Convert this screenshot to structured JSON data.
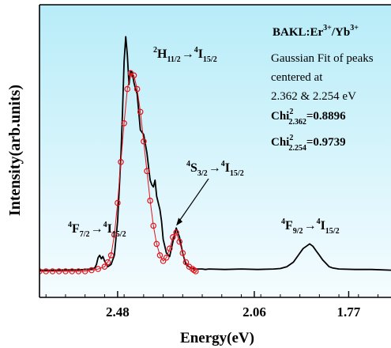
{
  "chart_data": {
    "type": "line",
    "xlabel": "Energy(eV)",
    "ylabel": "Intensity(arb.units)",
    "x_reversed": true,
    "xlim": [
      2.72,
      1.64
    ],
    "ylim": [
      0,
      1.08
    ],
    "x_ticks": [
      {
        "value": 2.48,
        "label": "2.48"
      },
      {
        "value": 2.06,
        "label": "2.06"
      },
      {
        "value": 1.77,
        "label": "1.77"
      }
    ],
    "y_ticks_labeled": false,
    "grid": false,
    "background_gradient": [
      "#b7ecf8",
      "#f5fcff"
    ],
    "series": [
      {
        "style": "solid-black-line",
        "color": "#000000",
        "x": [
          2.72,
          2.68,
          2.64,
          2.6,
          2.58,
          2.56,
          2.55,
          2.545,
          2.54,
          2.535,
          2.53,
          2.525,
          2.52,
          2.51,
          2.5,
          2.49,
          2.48,
          2.47,
          2.465,
          2.46,
          2.455,
          2.45,
          2.445,
          2.44,
          2.435,
          2.43,
          2.425,
          2.42,
          2.41,
          2.4,
          2.39,
          2.385,
          2.38,
          2.375,
          2.37,
          2.365,
          2.36,
          2.355,
          2.35,
          2.345,
          2.34,
          2.33,
          2.32,
          2.31,
          2.3,
          2.29,
          2.28,
          2.27,
          2.26,
          2.255,
          2.25,
          2.245,
          2.24,
          2.23,
          2.22,
          2.21,
          2.2,
          2.15,
          2.1,
          2.05,
          2.0,
          1.98,
          1.96,
          1.94,
          1.92,
          1.91,
          1.9,
          1.89,
          1.88,
          1.87,
          1.86,
          1.85,
          1.84,
          1.83,
          1.82,
          1.8,
          1.75,
          1.7,
          1.64
        ],
        "y": [
          0.005,
          0.005,
          0.006,
          0.006,
          0.008,
          0.01,
          0.015,
          0.03,
          0.06,
          0.07,
          0.055,
          0.065,
          0.045,
          0.02,
          0.03,
          0.07,
          0.22,
          0.5,
          0.7,
          0.92,
          1.03,
          0.95,
          0.82,
          0.88,
          0.87,
          0.83,
          0.8,
          0.78,
          0.62,
          0.6,
          0.52,
          0.46,
          0.4,
          0.38,
          0.37,
          0.4,
          0.33,
          0.3,
          0.27,
          0.22,
          0.14,
          0.08,
          0.065,
          0.13,
          0.19,
          0.15,
          0.08,
          0.03,
          0.02,
          0.015,
          0.012,
          0.01,
          0.01,
          0.01,
          0.01,
          0.008,
          0.01,
          0.008,
          0.01,
          0.008,
          0.01,
          0.012,
          0.02,
          0.04,
          0.08,
          0.1,
          0.11,
          0.12,
          0.11,
          0.09,
          0.07,
          0.05,
          0.035,
          0.02,
          0.015,
          0.01,
          0.008,
          0.008,
          0.005
        ]
      },
      {
        "style": "red-open-circles",
        "color": "#e0141c",
        "x": [
          2.72,
          2.7,
          2.68,
          2.66,
          2.64,
          2.62,
          2.6,
          2.58,
          2.56,
          2.54,
          2.52,
          2.51,
          2.5,
          2.49,
          2.48,
          2.47,
          2.46,
          2.45,
          2.44,
          2.43,
          2.42,
          2.41,
          2.4,
          2.39,
          2.38,
          2.37,
          2.36,
          2.35,
          2.34,
          2.33,
          2.32,
          2.31,
          2.3,
          2.29,
          2.28,
          2.27,
          2.26,
          2.25,
          2.245,
          2.24
        ],
        "y": [
          0.0,
          0.0,
          0.0,
          0.0,
          0.0,
          0.0,
          0.0,
          0.0,
          0.005,
          0.01,
          0.02,
          0.04,
          0.07,
          0.16,
          0.3,
          0.48,
          0.65,
          0.8,
          0.87,
          0.86,
          0.8,
          0.7,
          0.57,
          0.44,
          0.31,
          0.2,
          0.12,
          0.07,
          0.045,
          0.06,
          0.1,
          0.15,
          0.17,
          0.13,
          0.08,
          0.04,
          0.02,
          0.01,
          0.005,
          0.0
        ]
      }
    ],
    "annotations": [
      {
        "text": "BAKL:Er",
        "sup": "3+",
        "tail": "/Yb",
        "tail_sup": "3+",
        "style": "bold"
      },
      {
        "text": "Gaussian Fit of peaks"
      },
      {
        "text": "centered at"
      },
      {
        "text": "2.362 & 2.254 eV"
      },
      {
        "text": "Chi",
        "sup": "2",
        "sub": "2.362",
        "value": "=0.8896",
        "style": "bold"
      },
      {
        "text": "Chi",
        "sup": "2",
        "sub": "2.254",
        "value": "=0.9739",
        "style": "bold"
      }
    ],
    "transition_labels": [
      {
        "upper_sup": "2",
        "upper": "H",
        "upper_sub": "11/2",
        "lower_sup": "4",
        "lower": "I",
        "lower_sub": "15/2",
        "x": 2.38,
        "y": 0.92
      },
      {
        "upper_sup": "4",
        "upper": "S",
        "upper_sub": "3/2",
        "lower_sup": "4",
        "lower": "I",
        "lower_sub": "15/2",
        "x": 2.24,
        "y": 0.42,
        "arrow_to": {
          "x": 2.3,
          "y": 0.2
        }
      },
      {
        "upper_sup": "4",
        "upper": "F",
        "upper_sub": "7/2",
        "lower_sup": "4",
        "lower": "I",
        "lower_sub": "15/2",
        "x": 2.62,
        "y": 0.17
      },
      {
        "upper_sup": "4",
        "upper": "F",
        "upper_sub": "9/2",
        "lower_sup": "4",
        "lower": "I",
        "lower_sub": "15/2",
        "x": 1.9,
        "y": 0.19
      }
    ]
  }
}
